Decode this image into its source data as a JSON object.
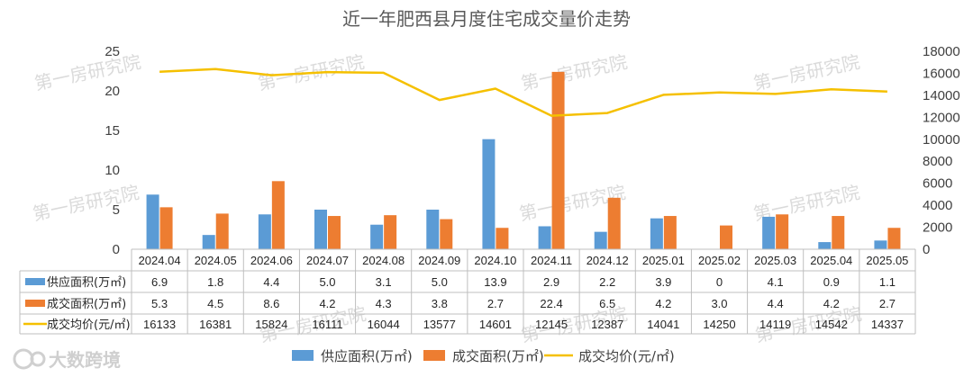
{
  "chart_data": {
    "type": "bar+line",
    "title": "近一年肥西县月度住宅成交量价走势",
    "categories": [
      "2024.04",
      "2024.05",
      "2024.06",
      "2024.07",
      "2024.08",
      "2024.09",
      "2024.10",
      "2024.11",
      "2024.12",
      "2025.01",
      "2025.02",
      "2025.03",
      "2025.04",
      "2025.05"
    ],
    "y_left": {
      "ylim": [
        0,
        25
      ],
      "ticks": [
        "0",
        "5",
        "10",
        "15",
        "20",
        "25"
      ]
    },
    "y_right": {
      "ylim": [
        0,
        18000
      ],
      "ticks": [
        "0",
        "2000",
        "4000",
        "6000",
        "8000",
        "10000",
        "12000",
        "14000",
        "16000",
        "18000"
      ]
    },
    "series": [
      {
        "name": "供应面积(万㎡)",
        "type": "bar",
        "axis": "left",
        "color": "#5B9BD5",
        "values": [
          6.9,
          1.8,
          4.4,
          5.0,
          3.1,
          5.0,
          13.9,
          2.9,
          2.2,
          3.9,
          0,
          4.1,
          0.9,
          1.1
        ],
        "labels": [
          "6.9",
          "1.8",
          "4.4",
          "5.0",
          "3.1",
          "5.0",
          "13.9",
          "2.9",
          "2.2",
          "3.9",
          "0",
          "4.1",
          "0.9",
          "1.1"
        ]
      },
      {
        "name": "成交面积(万㎡)",
        "type": "bar",
        "axis": "left",
        "color": "#ED7D31",
        "values": [
          5.3,
          4.5,
          8.6,
          4.2,
          4.3,
          3.8,
          2.7,
          22.4,
          6.5,
          4.2,
          3.0,
          4.4,
          4.2,
          2.7
        ],
        "labels": [
          "5.3",
          "4.5",
          "8.6",
          "4.2",
          "4.3",
          "3.8",
          "2.7",
          "22.4",
          "6.5",
          "4.2",
          "3.0",
          "4.4",
          "4.2",
          "2.7"
        ]
      },
      {
        "name": "成交均价(元/㎡)",
        "type": "line",
        "axis": "right",
        "color": "#F5C000",
        "values": [
          16133,
          16381,
          15824,
          16111,
          16044,
          13577,
          14601,
          12145,
          12387,
          14041,
          14250,
          14119,
          14542,
          14337
        ],
        "labels": [
          "16133",
          "16381",
          "15824",
          "16111",
          "16044",
          "13577",
          "14601",
          "12145",
          "12387",
          "14041",
          "14250",
          "14119",
          "14542",
          "14337"
        ]
      }
    ],
    "legend": [
      "供应面积(万㎡)",
      "成交面积(万㎡)",
      "成交均价(元/㎡)"
    ],
    "legend_position": "bottom",
    "data_table": true
  },
  "watermark": "第一房研究院",
  "logo": {
    "icon": "circle-logo-icon",
    "text": "大数跨境"
  }
}
